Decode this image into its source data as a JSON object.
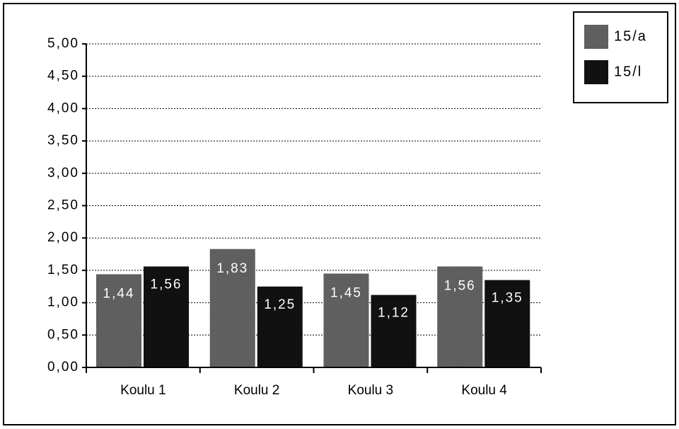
{
  "chart_data": {
    "type": "bar",
    "categories": [
      "Koulu 1",
      "Koulu 2",
      "Koulu 3",
      "Koulu 4"
    ],
    "series": [
      {
        "name": "15/a",
        "color": "#5c5c5c",
        "values": [
          1.44,
          1.83,
          1.45,
          1.56
        ],
        "value_labels": [
          "1,44",
          "1,83",
          "1,45",
          "1,56"
        ]
      },
      {
        "name": "15/l",
        "color": "#111111",
        "values": [
          1.56,
          1.25,
          1.12,
          1.35
        ],
        "value_labels": [
          "1,56",
          "1,25",
          "1,12",
          "1,35"
        ]
      }
    ],
    "ylim": [
      0,
      5
    ],
    "yticks": [
      {
        "value": 0,
        "label": "0,00"
      },
      {
        "value": 0.5,
        "label": "0,50"
      },
      {
        "value": 1,
        "label": "1,00"
      },
      {
        "value": 1.5,
        "label": "1,50"
      },
      {
        "value": 2,
        "label": "2,00"
      },
      {
        "value": 2.5,
        "label": "2,50"
      },
      {
        "value": 3,
        "label": "3,00"
      },
      {
        "value": 3.5,
        "label": "3,50"
      },
      {
        "value": 4,
        "label": "4,00"
      },
      {
        "value": 4.5,
        "label": "4,50"
      },
      {
        "value": 5,
        "label": "5,00"
      }
    ],
    "grid": true,
    "legend": "upper right"
  }
}
